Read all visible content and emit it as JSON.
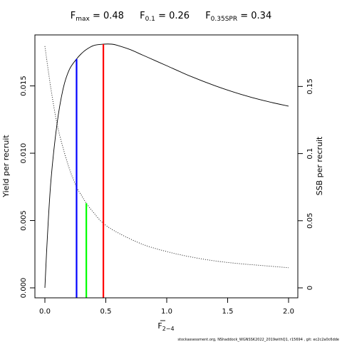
{
  "title": {
    "fmax_main": "F",
    "fmax_sub": "max",
    "fmax_value": "= 0.48",
    "f01_main": "F",
    "f01_sub": "0.1",
    "f01_value": "= 0.26",
    "fspr_main": "F",
    "fspr_sub": "0.35SPR",
    "fspr_value": "= 0.34"
  },
  "footer": "stockassessment.org, NShaddock_WGNSSK2022_2019withQ1, r15694 , git: ec2c2a0c6dde",
  "chart_data": {
    "type": "line",
    "xlabel_main": "F",
    "xlabel_sub": "2−4",
    "ylabel_left": "Yield per recruit",
    "ylabel_right": "SSB per recruit",
    "xlim": [
      0,
      2.0
    ],
    "ylim_left": [
      0,
      0.0181
    ],
    "ylim_right": [
      0,
      0.1815
    ],
    "x_ticks": [
      {
        "value": 0,
        "label": "0.0"
      },
      {
        "value": 0.5,
        "label": "0.5"
      },
      {
        "value": 1.0,
        "label": "1.0"
      },
      {
        "value": 1.5,
        "label": "1.5"
      },
      {
        "value": 2.0,
        "label": "2.0"
      }
    ],
    "y_left_ticks": [
      {
        "value": 0,
        "label": "0.000"
      },
      {
        "value": 0.005,
        "label": "0.005"
      },
      {
        "value": 0.01,
        "label": "0.010"
      },
      {
        "value": 0.015,
        "label": "0.015"
      }
    ],
    "y_right_ticks": [
      {
        "value": 0,
        "label": "0"
      },
      {
        "value": 0.05,
        "label": "0.05"
      },
      {
        "value": 0.1,
        "label": "0.1"
      },
      {
        "value": 0.15,
        "label": "0.15"
      }
    ],
    "series": [
      {
        "style": "solid",
        "axis": "left",
        "color": "#000000",
        "x": [
          0,
          0.02,
          0.05,
          0.1,
          0.15,
          0.2,
          0.26,
          0.3,
          0.34,
          0.4,
          0.48,
          0.55,
          0.6,
          0.7,
          0.8,
          0.9,
          1.0,
          1.2,
          1.4,
          1.6,
          1.8,
          2.0
        ],
        "y": [
          0.0,
          0.0037,
          0.008,
          0.0122,
          0.0148,
          0.0162,
          0.017,
          0.0174,
          0.0177,
          0.018,
          0.0181,
          0.0181,
          0.018,
          0.0177,
          0.0173,
          0.0169,
          0.0165,
          0.0157,
          0.015,
          0.0144,
          0.0139,
          0.0135
        ]
      },
      {
        "style": "dotted",
        "axis": "right",
        "color": "#000000",
        "x": [
          0,
          0.05,
          0.1,
          0.15,
          0.2,
          0.26,
          0.3,
          0.34,
          0.4,
          0.48,
          0.6,
          0.8,
          1.0,
          1.2,
          1.4,
          1.6,
          1.8,
          2.0
        ],
        "y": [
          0.18,
          0.148,
          0.122,
          0.104,
          0.089,
          0.075,
          0.069,
          0.063,
          0.056,
          0.048,
          0.041,
          0.0325,
          0.027,
          0.023,
          0.02,
          0.018,
          0.0165,
          0.015
        ]
      }
    ],
    "reference_lines": [
      {
        "x": 0.26,
        "axis": "left",
        "y_top": 0.017,
        "color": "#0000ff"
      },
      {
        "x": 0.34,
        "axis": "right",
        "y_top": 0.063,
        "color": "#00ff00"
      },
      {
        "x": 0.48,
        "axis": "left",
        "y_top": 0.0181,
        "color": "#ff0000"
      }
    ]
  }
}
